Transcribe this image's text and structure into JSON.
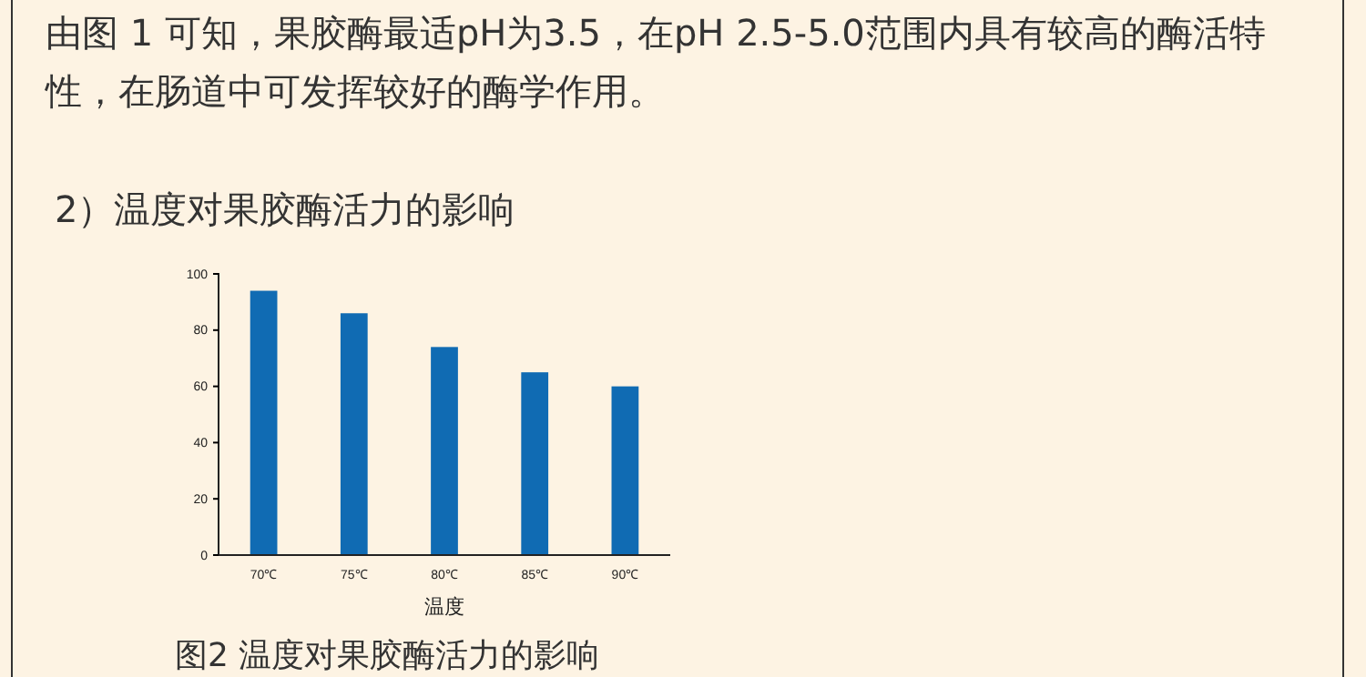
{
  "chart_data": {
    "type": "bar",
    "title": "2）温度对果胶酶活力的影响",
    "xlabel": "温度",
    "annotations": [
      "由图 1 可知，果胶酶最适pH为3.5，在pH 2.5-5.0范围内具有较高的酶活特性，在肠道中可发挥较好的酶学作用。",
      "图2 温度对果胶酶活力的影响"
    ],
    "categories": [
      "70℃",
      "75℃",
      "80℃",
      "85℃",
      "90℃"
    ],
    "values": [
      94,
      86,
      74,
      65,
      60
    ],
    "color": "#106bb3",
    "ylim": [
      0,
      100
    ],
    "yticks": [
      0,
      20,
      40,
      60,
      80,
      100
    ],
    "grid": false
  }
}
